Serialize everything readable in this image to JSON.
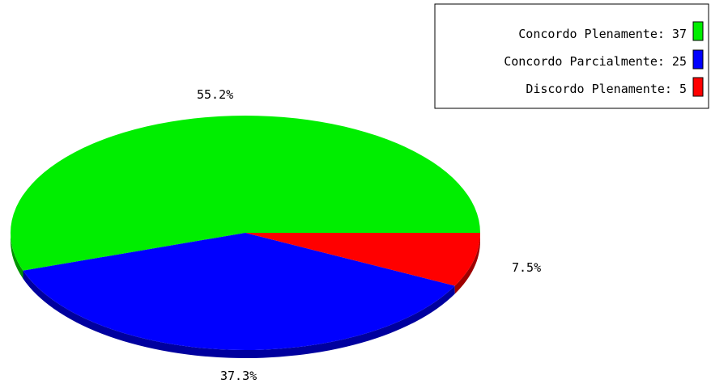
{
  "chart_data": {
    "type": "pie",
    "style": "3d",
    "legend_position": "top-right",
    "slices": [
      {
        "label": "Concordo Plenamente",
        "value": 37,
        "percent_label": "55.2%",
        "color": "#00ee00",
        "legend_text": "Concordo Plenamente: 37"
      },
      {
        "label": "Concordo Parcialmente",
        "value": 25,
        "percent_label": "37.3%",
        "color": "#0000ff",
        "legend_text": "Concordo Parcialmente: 25"
      },
      {
        "label": "Discordo Plenamente",
        "value": 5,
        "percent_label": "7.5%",
        "color": "#ff0000",
        "legend_text": "Discordo Plenamente: 5"
      }
    ]
  }
}
